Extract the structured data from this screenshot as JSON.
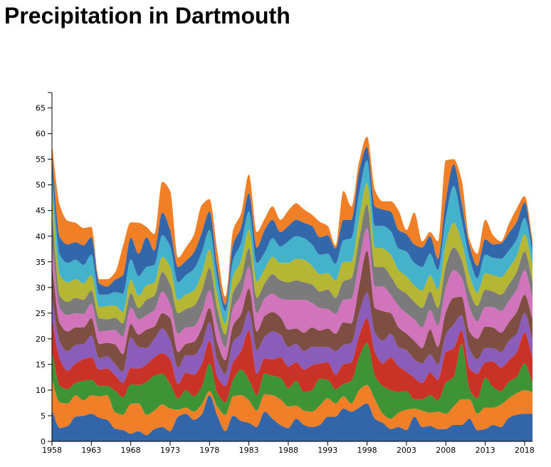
{
  "chart_data": {
    "type": "area",
    "stacked": true,
    "curve": "smooth",
    "title": "Precipitation in Dartmouth",
    "xlabel": "",
    "ylabel": "",
    "xlim": [
      1958,
      2019
    ],
    "ylim": [
      0,
      68
    ],
    "x_ticks": [
      1958,
      1963,
      1968,
      1973,
      1978,
      1983,
      1988,
      1993,
      1998,
      2003,
      2008,
      2013,
      2018
    ],
    "y_ticks": [
      0,
      5,
      10,
      15,
      20,
      25,
      30,
      35,
      40,
      45,
      50,
      55,
      60,
      65
    ],
    "legend": "none",
    "grid": false,
    "x": [
      1958,
      1959,
      1960,
      1961,
      1962,
      1963,
      1964,
      1965,
      1966,
      1967,
      1968,
      1969,
      1970,
      1971,
      1972,
      1973,
      1974,
      1975,
      1976,
      1977,
      1978,
      1979,
      1980,
      1981,
      1982,
      1983,
      1984,
      1985,
      1986,
      1987,
      1988,
      1989,
      1990,
      1991,
      1992,
      1993,
      1994,
      1995,
      1996,
      1997,
      1998,
      1999,
      2000,
      2001,
      2002,
      2003,
      2004,
      2005,
      2006,
      2007,
      2008,
      2009,
      2010,
      2011,
      2012,
      2013,
      2014,
      2015,
      2016,
      2017,
      2018,
      2019
    ],
    "series": [
      {
        "color": "#3366a8",
        "values": [
          6.0,
          2.6,
          3.0,
          4.8,
          5.0,
          5.4,
          4.6,
          4.2,
          2.5,
          2.2,
          1.5,
          2.0,
          1.2,
          2.4,
          2.8,
          2.0,
          4.8,
          5.4,
          4.2,
          5.2,
          9.0,
          5.0,
          2.0,
          5.0,
          4.0,
          3.6,
          2.8,
          5.8,
          4.4,
          3.2,
          2.6,
          4.4,
          3.2,
          2.8,
          3.2,
          4.8,
          4.8,
          6.4,
          5.8,
          6.6,
          7.4,
          4.4,
          3.6,
          2.4,
          2.8,
          2.2,
          4.8,
          2.8,
          3.0,
          2.4,
          2.4,
          3.2,
          3.2,
          4.4,
          2.2,
          2.4,
          3.2,
          2.8,
          4.6,
          5.2,
          5.4,
          5.4
        ]
      },
      {
        "color": "#f07f27",
        "values": [
          6.0,
          5.0,
          4.4,
          4.2,
          3.0,
          3.6,
          4.2,
          4.8,
          3.2,
          3.0,
          5.8,
          5.4,
          4.0,
          3.6,
          4.4,
          4.4,
          1.4,
          1.2,
          1.6,
          2.0,
          0.8,
          1.8,
          3.2,
          3.8,
          5.0,
          4.4,
          3.2,
          3.4,
          4.6,
          5.0,
          4.2,
          2.6,
          2.8,
          3.0,
          3.8,
          3.6,
          2.6,
          2.4,
          1.6,
          3.4,
          3.6,
          3.8,
          1.8,
          2.0,
          2.8,
          4.0,
          1.6,
          3.2,
          2.6,
          3.4,
          3.0,
          3.6,
          5.0,
          3.8,
          3.2,
          4.2,
          3.4,
          4.4,
          3.8,
          4.2,
          4.6,
          4.2
        ]
      },
      {
        "color": "#3e9334",
        "values": [
          5.5,
          3.2,
          2.8,
          2.4,
          3.8,
          3.0,
          2.0,
          1.8,
          4.2,
          3.4,
          3.8,
          3.6,
          6.4,
          6.8,
          6.0,
          4.8,
          2.2,
          3.4,
          3.0,
          3.4,
          5.4,
          2.6,
          2.4,
          3.2,
          5.0,
          4.0,
          3.0,
          4.0,
          3.8,
          4.2,
          3.6,
          4.8,
          3.6,
          4.2,
          5.2,
          3.6,
          2.8,
          2.4,
          4.4,
          6.4,
          8.2,
          4.6,
          5.4,
          5.6,
          4.0,
          3.6,
          1.8,
          2.2,
          3.4,
          2.2,
          6.0,
          5.8,
          10.8,
          2.0,
          3.0,
          5.8,
          4.0,
          2.6,
          3.2,
          3.2,
          5.2,
          1.8
        ]
      },
      {
        "color": "#c83227",
        "values": [
          6.4,
          5.2,
          3.6,
          3.8,
          4.2,
          4.4,
          3.2,
          3.4,
          3.0,
          2.8,
          3.2,
          3.2,
          3.4,
          3.6,
          4.0,
          4.8,
          2.8,
          3.4,
          4.2,
          4.4,
          4.4,
          3.2,
          3.2,
          3.4,
          3.6,
          9.6,
          4.2,
          3.0,
          3.2,
          4.0,
          4.2,
          3.6,
          4.4,
          4.8,
          3.0,
          3.4,
          2.8,
          3.8,
          3.6,
          4.2,
          4.8,
          4.6,
          4.4,
          6.4,
          5.0,
          3.8,
          4.2,
          3.2,
          4.4,
          4.0,
          6.0,
          5.6,
          2.6,
          4.0,
          4.8,
          3.0,
          5.0,
          4.6,
          4.2,
          4.8,
          6.0,
          4.8
        ]
      },
      {
        "color": "#8b5dba",
        "values": [
          4.0,
          3.4,
          3.8,
          3.6,
          3.0,
          4.2,
          2.2,
          2.4,
          2.2,
          2.2,
          6.0,
          4.2,
          3.2,
          3.6,
          4.8,
          3.8,
          3.2,
          3.4,
          3.8,
          3.8,
          3.6,
          3.2,
          2.4,
          4.0,
          3.4,
          3.8,
          4.6,
          4.2,
          5.4,
          4.4,
          3.8,
          3.6,
          3.6,
          3.6,
          3.2,
          3.0,
          4.6,
          3.8,
          3.8,
          4.4,
          5.0,
          3.8,
          4.4,
          4.6,
          3.8,
          4.2,
          3.6,
          3.8,
          3.6,
          3.0,
          3.4,
          4.6,
          3.0,
          3.8,
          2.8,
          2.8,
          2.6,
          3.0,
          3.8,
          3.6,
          3.8,
          3.6
        ]
      },
      {
        "color": "#7e4e43",
        "values": [
          6.5,
          3.6,
          3.8,
          3.4,
          3.2,
          3.4,
          2.8,
          2.6,
          3.8,
          3.4,
          2.6,
          2.4,
          3.6,
          2.4,
          3.0,
          4.2,
          3.0,
          2.2,
          2.6,
          3.2,
          2.8,
          3.4,
          2.6,
          3.2,
          3.8,
          4.4,
          3.6,
          4.0,
          3.8,
          3.4,
          3.4,
          3.0,
          3.6,
          3.8,
          3.2,
          3.6,
          3.4,
          4.4,
          3.8,
          5.4,
          8.2,
          4.8,
          5.8,
          4.0,
          3.8,
          3.2,
          3.6,
          3.0,
          4.8,
          3.4,
          4.4,
          5.2,
          3.6,
          3.4,
          4.0,
          4.2,
          4.0,
          3.8,
          3.6,
          4.2,
          3.6,
          4.0
        ]
      },
      {
        "color": "#d274bc",
        "values": [
          4.2,
          3.0,
          3.2,
          2.8,
          2.6,
          2.8,
          2.4,
          2.4,
          2.8,
          3.4,
          3.2,
          3.0,
          2.8,
          3.2,
          4.2,
          2.8,
          3.6,
          3.2,
          3.0,
          3.0,
          3.4,
          3.4,
          2.6,
          3.4,
          3.8,
          4.2,
          3.6,
          3.4,
          3.6,
          3.6,
          5.8,
          5.6,
          6.4,
          4.8,
          4.4,
          3.8,
          3.8,
          4.4,
          4.8,
          4.6,
          4.4,
          4.2,
          4.8,
          3.6,
          4.2,
          4.0,
          4.2,
          4.0,
          3.8,
          4.2,
          4.8,
          5.4,
          3.8,
          4.8,
          3.4,
          3.8,
          4.0,
          4.2,
          4.2,
          4.4,
          4.8,
          4.2
        ]
      },
      {
        "color": "#7b7b7b",
        "values": [
          6.0,
          2.4,
          2.6,
          3.0,
          2.8,
          2.6,
          2.6,
          2.2,
          2.4,
          2.6,
          2.8,
          2.2,
          3.0,
          2.8,
          3.8,
          3.8,
          4.0,
          3.6,
          4.0,
          4.2,
          4.4,
          3.2,
          2.4,
          3.0,
          3.2,
          3.6,
          3.0,
          3.0,
          3.8,
          3.6,
          3.4,
          3.8,
          3.4,
          3.6,
          3.2,
          3.8,
          3.2,
          3.6,
          4.0,
          4.4,
          4.6,
          3.8,
          3.8,
          3.6,
          3.4,
          3.8,
          3.4,
          3.8,
          3.6,
          3.4,
          4.2,
          4.4,
          3.4,
          3.0,
          3.0,
          3.4,
          3.0,
          3.2,
          3.2,
          3.4,
          3.6,
          3.2
        ]
      },
      {
        "color": "#b5b633",
        "values": [
          4.0,
          4.0,
          3.8,
          3.6,
          3.2,
          3.0,
          2.2,
          2.6,
          2.4,
          2.2,
          2.6,
          2.4,
          2.8,
          2.6,
          3.0,
          3.4,
          2.6,
          2.8,
          3.0,
          3.4,
          3.6,
          2.6,
          2.2,
          3.2,
          3.4,
          3.6,
          3.2,
          2.8,
          3.4,
          3.4,
          3.8,
          4.2,
          4.4,
          3.6,
          3.4,
          3.2,
          3.4,
          3.8,
          3.2,
          4.2,
          4.2,
          3.8,
          3.6,
          4.2,
          3.6,
          3.4,
          3.2,
          3.4,
          3.2,
          3.6,
          4.4,
          4.8,
          3.6,
          3.2,
          2.6,
          3.2,
          3.2,
          3.4,
          3.2,
          3.2,
          3.4,
          3.2
        ]
      },
      {
        "color": "#45b2cc",
        "values": [
          3.6,
          4.0,
          3.8,
          3.8,
          3.6,
          4.0,
          2.4,
          2.2,
          2.6,
          3.6,
          4.0,
          3.8,
          3.6,
          3.4,
          4.2,
          4.0,
          3.4,
          3.8,
          4.2,
          4.2,
          3.8,
          3.2,
          2.4,
          3.2,
          3.4,
          3.6,
          3.6,
          3.2,
          3.6,
          3.2,
          4.2,
          4.4,
          4.2,
          4.2,
          3.8,
          3.8,
          3.2,
          4.2,
          4.6,
          4.8,
          4.4,
          4.2,
          4.4,
          4.6,
          4.2,
          4.8,
          4.4,
          4.6,
          4.2,
          3.8,
          5.0,
          7.2,
          4.2,
          3.4,
          2.8,
          3.6,
          3.4,
          3.6,
          3.4,
          3.2,
          3.2,
          2.8
        ]
      },
      {
        "color": "#3367ab",
        "values": [
          3.4,
          3.4,
          3.6,
          3.4,
          3.8,
          3.4,
          2.2,
          1.6,
          2.4,
          3.6,
          4.2,
          4.4,
          5.8,
          2.8,
          4.4,
          3.2,
          3.0,
          2.8,
          3.2,
          3.8,
          3.6,
          2.2,
          1.2,
          3.0,
          3.0,
          3.6,
          3.0,
          4.4,
          3.6,
          2.8,
          3.0,
          3.2,
          3.0,
          3.6,
          3.4,
          3.6,
          3.0,
          4.0,
          3.6,
          4.4,
          2.6,
          3.8,
          3.2,
          3.8,
          3.6,
          3.4,
          3.6,
          3.8,
          3.4,
          2.2,
          3.6,
          4.2,
          3.4,
          2.4,
          2.4,
          3.0,
          2.6,
          3.0,
          3.4,
          3.4,
          3.0,
          1.2
        ]
      },
      {
        "color": "#f17f26",
        "values": [
          2.2,
          6.2,
          4.6,
          3.8,
          3.4,
          2.0,
          0.8,
          1.4,
          1.4,
          5.6,
          3.0,
          6.0,
          2.0,
          3.2,
          6.0,
          7.6,
          1.8,
          2.6,
          3.4,
          5.4,
          2.4,
          3.2,
          1.6,
          2.8,
          2.8,
          3.6,
          3.0,
          2.2,
          2.6,
          2.4,
          3.0,
          3.2,
          2.6,
          2.2,
          3.0,
          1.8,
          0.6,
          5.6,
          2.6,
          1.8,
          2.0,
          3.2,
          1.6,
          2.0,
          3.8,
          0.8,
          6.2,
          1.2,
          0.8,
          3.4,
          7.6,
          1.0,
          4.4,
          1.2,
          2.4,
          3.8,
          1.8,
          0.4,
          1.8,
          2.6,
          1.2,
          1.0
        ]
      }
    ]
  }
}
